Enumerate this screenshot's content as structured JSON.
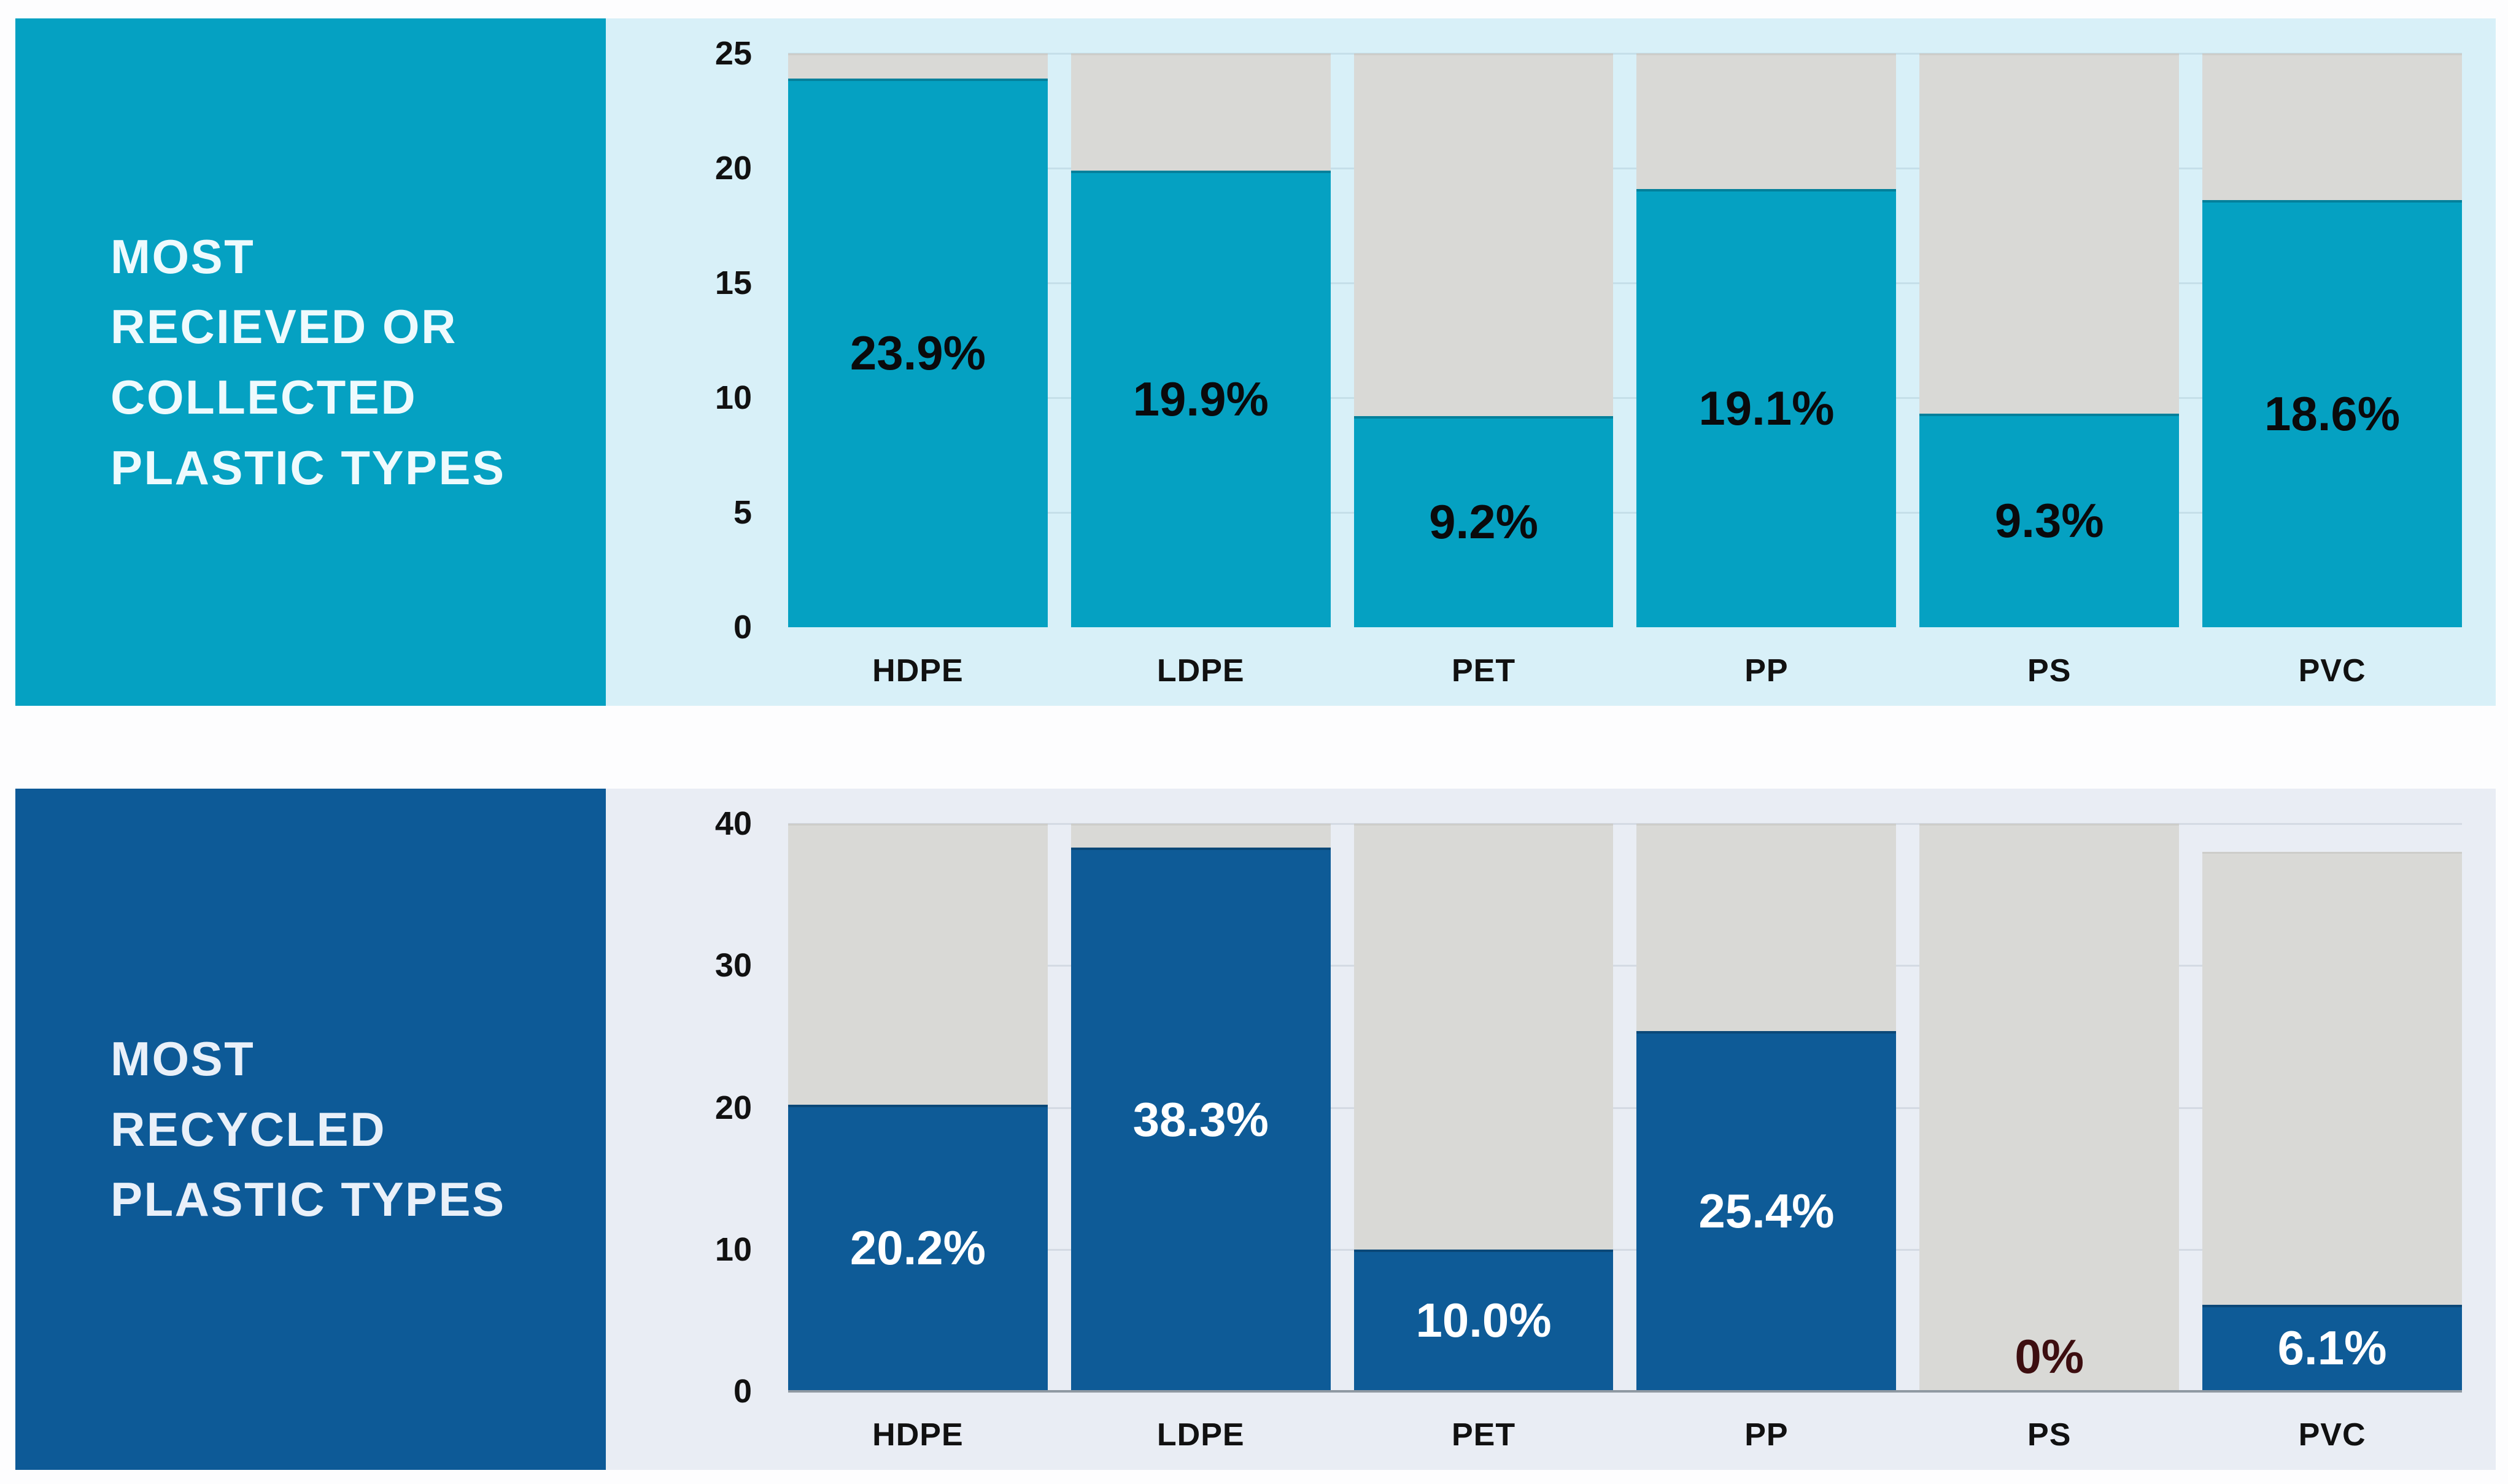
{
  "page": {
    "background": "#fdfdfe"
  },
  "chart_data": [
    {
      "type": "bar",
      "title": "MOST RECIEVED OR COLLECTED PLASTIC TYPES",
      "panel_title": "MOST\nRECIEVED OR\nCOLLECTED\nPLASTIC TYPES",
      "categories": [
        "HDPE",
        "LDPE",
        "PET",
        "PP",
        "PS",
        "PVC"
      ],
      "values": [
        23.9,
        19.9,
        9.2,
        19.1,
        9.3,
        18.6
      ],
      "labels": [
        "23.9%",
        "19.9%",
        "9.2%",
        "19.1%",
        "9.3%",
        "18.6%"
      ],
      "track_values": [
        25,
        25,
        25,
        25,
        25,
        25
      ],
      "ylim": [
        0,
        25
      ],
      "tick_values": [
        25,
        20,
        15,
        10,
        5,
        0
      ],
      "tick_labels": [
        "25",
        "20",
        "15",
        "10",
        "5",
        "0"
      ],
      "unit": "%",
      "grid": true,
      "legend": false,
      "axis_line": false,
      "colors": {
        "panel": "#05a1c2",
        "chart_bg": "#d8f0f8",
        "bar": "#05a1c2",
        "track": "#d9d9d6",
        "grid": "#c5dfe9",
        "tick": "#111111",
        "category": "#111111",
        "title": "#eefafd"
      },
      "label_colors": [
        "#0a0a0c",
        "#0a0a0c",
        "#0a0a0c",
        "#0a0a0c",
        "#0a0a0c",
        "#0a0a0c"
      ]
    },
    {
      "type": "bar",
      "title": "MOST RECYCLED PLASTIC TYPES",
      "panel_title": "MOST\nRECYCLED\nPLASTIC TYPES",
      "categories": [
        "HDPE",
        "LDPE",
        "PET",
        "PP",
        "PS",
        "PVC"
      ],
      "values": [
        20.2,
        38.3,
        10.0,
        25.4,
        0,
        6.1
      ],
      "labels": [
        "20.2%",
        "38.3%",
        "10.0%",
        "25.4%",
        "0%",
        "6.1%"
      ],
      "track_values": [
        40,
        40,
        40,
        40,
        40,
        38
      ],
      "ylim": [
        0,
        40
      ],
      "tick_values": [
        40,
        30,
        20,
        10,
        0
      ],
      "tick_labels": [
        "40",
        "30",
        "20",
        "10",
        "0"
      ],
      "unit": "%",
      "grid": true,
      "legend": false,
      "axis_line": true,
      "colors": {
        "panel": "#0d5a97",
        "chart_bg": "#e9edf4",
        "bar": "#0e5b97",
        "track": "#d9d9d6",
        "grid": "#d4dae3",
        "tick": "#111111",
        "category": "#111111",
        "title": "#e9f0f9",
        "axis": "#8f99a2"
      },
      "label_colors": [
        "#ffffff",
        "#ffffff",
        "#ffffff",
        "#ffffff",
        "#3d0e10",
        "#ffffff"
      ]
    }
  ]
}
